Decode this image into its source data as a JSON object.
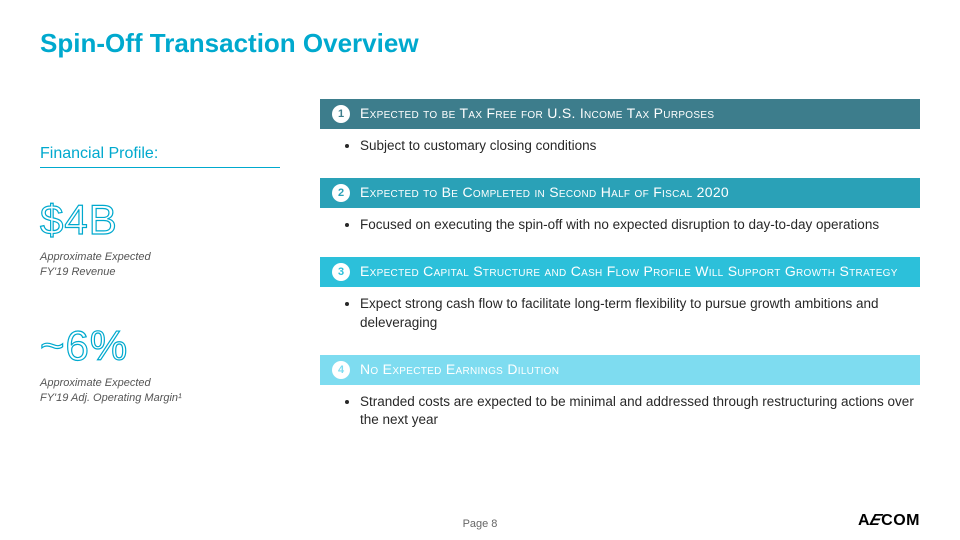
{
  "slide": {
    "title": "Spin-Off Transaction Overview",
    "page_label": "Page 8",
    "logo_text": "AECOM"
  },
  "financial_profile": {
    "heading": "Financial Profile:",
    "stats": [
      {
        "value": "$4B",
        "caption": "Approximate Expected\nFY'19 Revenue"
      },
      {
        "value": "~6%",
        "caption": "Approximate Expected\nFY'19 Adj. Operating Margin¹"
      }
    ],
    "value_color": "#00a9ce",
    "value_fontsize": 42,
    "caption_fontsize": 11
  },
  "sections": [
    {
      "num": "1",
      "heading": "Expected to be Tax Free  for U.S. Income Tax Purposes",
      "bar_color": "#3d7d8c",
      "num_text_color": "#3d7d8c",
      "bullets": [
        "Subject to customary closing conditions"
      ]
    },
    {
      "num": "2",
      "heading": "Expected to Be Completed in Second Half of Fiscal 2020",
      "bar_color": "#2aa1b7",
      "num_text_color": "#2aa1b7",
      "bullets": [
        "Focused on executing the spin-off with no expected disruption to day-to-day operations"
      ]
    },
    {
      "num": "3",
      "heading": "Expected Capital Structure and Cash Flow Profile Will Support Growth Strategy",
      "bar_color": "#2cc0da",
      "num_text_color": "#2cc0da",
      "bullets": [
        "Expect strong cash flow to facilitate long-term flexibility to pursue growth ambitions and deleveraging"
      ]
    },
    {
      "num": "4",
      "heading": "No Expected Earnings Dilution",
      "bar_color": "#7edcf0",
      "num_text_color": "#7edcf0",
      "bullets": [
        "Stranded costs are expected to be minimal and addressed through restructuring actions over the next year"
      ]
    }
  ],
  "colors": {
    "accent": "#00a9ce",
    "body_text": "#282828",
    "footer_text": "#666666",
    "background": "#ffffff"
  },
  "fonts": {
    "title_size": 26,
    "bar_size": 14,
    "bullet_size": 13.5
  }
}
